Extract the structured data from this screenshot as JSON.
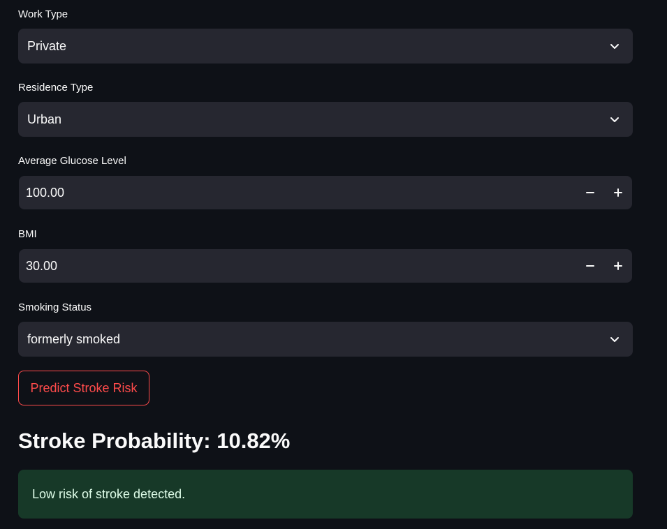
{
  "form": {
    "work_type": {
      "label": "Work Type",
      "value": "Private"
    },
    "residence_type": {
      "label": "Residence Type",
      "value": "Urban"
    },
    "avg_glucose": {
      "label": "Average Glucose Level",
      "value": "100.00"
    },
    "bmi": {
      "label": "BMI",
      "value": "30.00"
    },
    "smoking_status": {
      "label": "Smoking Status",
      "value": "formerly smoked"
    },
    "submit_label": "Predict Stroke Risk"
  },
  "result": {
    "title": "Stroke Probability: 10.82%",
    "message": "Low risk of stroke detected."
  },
  "colors": {
    "background": "#0e1117",
    "input_bg": "#262730",
    "accent": "#ff4b4b",
    "success_bg": "#173928",
    "success_text": "#dffde9"
  },
  "icons": {
    "dropdown": "chevron-down-icon",
    "decrement": "minus-icon",
    "increment": "plus-icon"
  }
}
